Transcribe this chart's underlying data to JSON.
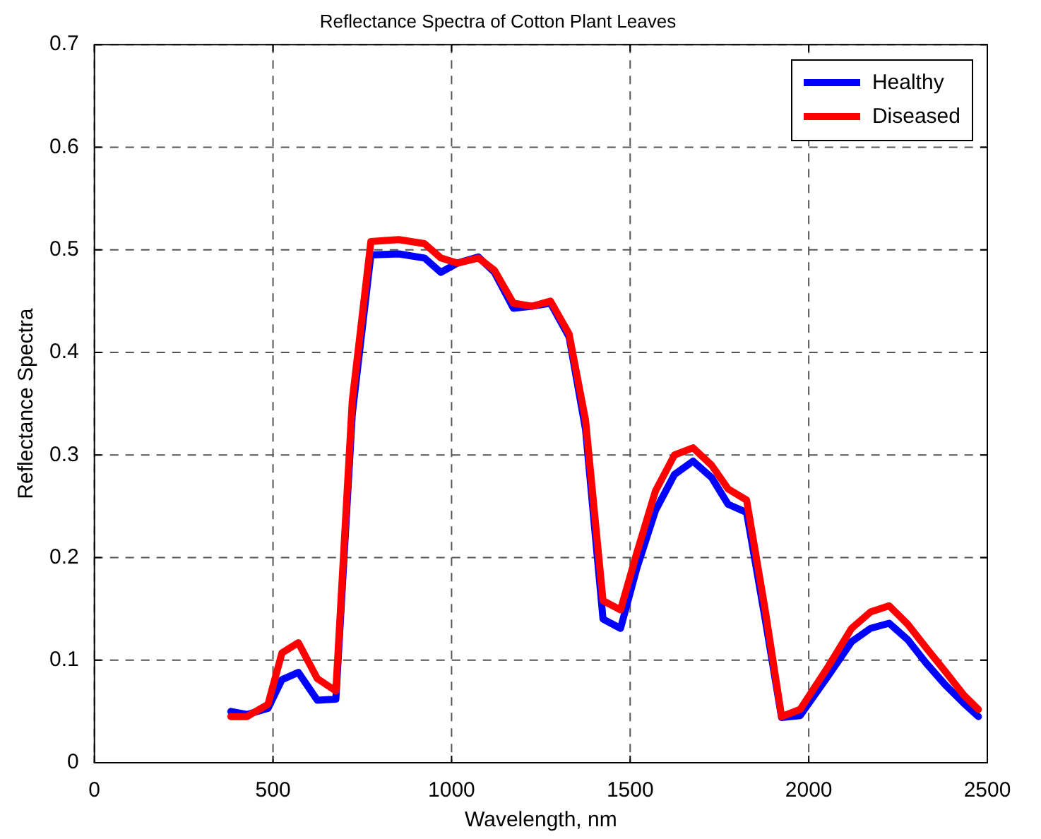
{
  "chart_data": {
    "type": "line",
    "title": "Reflectance Spectra of Cotton Plant Leaves",
    "xlabel": "Wavelength, nm",
    "ylabel": "Reflectance Spectra",
    "x": [
      382,
      427,
      486,
      525,
      571,
      624,
      676,
      722,
      774,
      852,
      924,
      970,
      1016,
      1075,
      1120,
      1173,
      1225,
      1277,
      1329,
      1375,
      1424,
      1473,
      1519,
      1571,
      1624,
      1676,
      1728,
      1774,
      1826,
      1878,
      1924,
      1976,
      2055,
      2120,
      2173,
      2225,
      2277,
      2329,
      2382,
      2434,
      2475
    ],
    "series": [
      {
        "name": "Healthy",
        "color": "#0000ff",
        "values": [
          0.05,
          0.047,
          0.053,
          0.081,
          0.088,
          0.061,
          0.062,
          0.34,
          0.495,
          0.496,
          0.492,
          0.478,
          0.487,
          0.493,
          0.478,
          0.443,
          0.445,
          0.448,
          0.415,
          0.325,
          0.14,
          0.131,
          0.19,
          0.246,
          0.281,
          0.294,
          0.278,
          0.252,
          0.244,
          0.14,
          0.044,
          0.046,
          0.085,
          0.118,
          0.131,
          0.136,
          0.12,
          0.097,
          0.076,
          0.058,
          0.045
        ]
      },
      {
        "name": "Diseased",
        "color": "#ff0000",
        "values": [
          0.045,
          0.045,
          0.057,
          0.107,
          0.117,
          0.082,
          0.07,
          0.353,
          0.508,
          0.51,
          0.506,
          0.492,
          0.487,
          0.492,
          0.48,
          0.448,
          0.445,
          0.45,
          0.418,
          0.334,
          0.158,
          0.149,
          0.205,
          0.265,
          0.3,
          0.307,
          0.29,
          0.267,
          0.256,
          0.149,
          0.045,
          0.052,
          0.094,
          0.131,
          0.147,
          0.153,
          0.135,
          0.112,
          0.089,
          0.066,
          0.052
        ]
      }
    ],
    "xlim": [
      0,
      2500
    ],
    "xticks": [
      0,
      500,
      1000,
      1500,
      2000,
      2500
    ],
    "ylim": [
      0,
      0.7
    ],
    "yticks": [
      0,
      0.1,
      0.2,
      0.3,
      0.4,
      0.5,
      0.6,
      0.7
    ],
    "grid": true,
    "legend": "top right",
    "marker": "none",
    "line_style": "solid"
  }
}
